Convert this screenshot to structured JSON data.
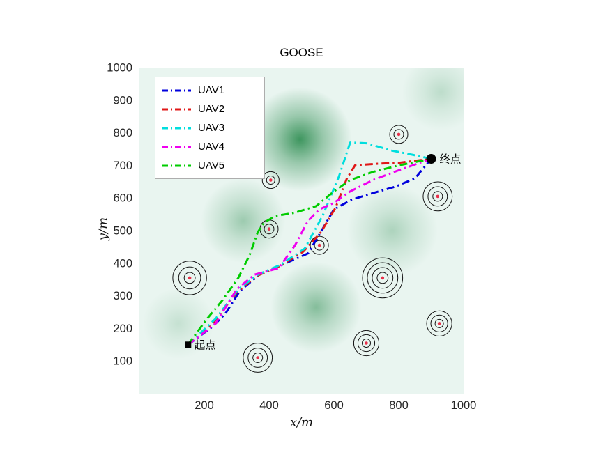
{
  "chart_data": {
    "type": "line",
    "title": "GOOSE",
    "xlabel": "x/m",
    "ylabel": "y/m",
    "xlim": [
      0,
      1000
    ],
    "ylim": [
      0,
      1000
    ],
    "xticks": [
      200,
      400,
      600,
      800,
      1000
    ],
    "yticks": [
      100,
      200,
      300,
      400,
      500,
      600,
      700,
      800,
      900,
      1000
    ],
    "grid": false,
    "legend_position": "top-left",
    "line_style": "dash-dot",
    "tick_color": "#262626",
    "obstacle_ring_color": "#141414",
    "obstacle_center_color": "#e8304a",
    "series": [
      {
        "name": "UAV1",
        "color": "#0000dd",
        "points": [
          [
            150,
            150
          ],
          [
            225,
            205
          ],
          [
            265,
            245
          ],
          [
            310,
            315
          ],
          [
            370,
            365
          ],
          [
            440,
            395
          ],
          [
            520,
            430
          ],
          [
            565,
            505
          ],
          [
            600,
            565
          ],
          [
            655,
            595
          ],
          [
            720,
            615
          ],
          [
            790,
            635
          ],
          [
            850,
            660
          ],
          [
            900,
            720
          ]
        ]
      },
      {
        "name": "UAV2",
        "color": "#e01717",
        "points": [
          [
            150,
            150
          ],
          [
            230,
            220
          ],
          [
            300,
            310
          ],
          [
            360,
            360
          ],
          [
            430,
            390
          ],
          [
            505,
            435
          ],
          [
            560,
            495
          ],
          [
            605,
            570
          ],
          [
            640,
            660
          ],
          [
            665,
            700
          ],
          [
            730,
            705
          ],
          [
            800,
            708
          ],
          [
            900,
            720
          ]
        ]
      },
      {
        "name": "UAV3",
        "color": "#00dede",
        "points": [
          [
            150,
            150
          ],
          [
            235,
            230
          ],
          [
            305,
            320
          ],
          [
            365,
            365
          ],
          [
            435,
            395
          ],
          [
            510,
            445
          ],
          [
            565,
            545
          ],
          [
            615,
            665
          ],
          [
            650,
            770
          ],
          [
            700,
            768
          ],
          [
            780,
            745
          ],
          [
            845,
            732
          ],
          [
            900,
            720
          ]
        ]
      },
      {
        "name": "UAV4",
        "color": "#f000f0",
        "points": [
          [
            150,
            150
          ],
          [
            235,
            215
          ],
          [
            300,
            320
          ],
          [
            355,
            365
          ],
          [
            430,
            385
          ],
          [
            480,
            455
          ],
          [
            520,
            530
          ],
          [
            555,
            565
          ],
          [
            600,
            585
          ],
          [
            650,
            620
          ],
          [
            720,
            655
          ],
          [
            800,
            685
          ],
          [
            900,
            720
          ]
        ]
      },
      {
        "name": "UAV5",
        "color": "#00cc00",
        "points": [
          [
            150,
            150
          ],
          [
            205,
            225
          ],
          [
            255,
            285
          ],
          [
            305,
            355
          ],
          [
            340,
            425
          ],
          [
            365,
            495
          ],
          [
            385,
            525
          ],
          [
            420,
            545
          ],
          [
            480,
            555
          ],
          [
            545,
            575
          ],
          [
            600,
            620
          ],
          [
            650,
            655
          ],
          [
            720,
            680
          ],
          [
            800,
            700
          ],
          [
            900,
            720
          ]
        ]
      }
    ],
    "start": {
      "x": 150,
      "y": 150,
      "label": "起点",
      "marker": "square",
      "color": "#000000"
    },
    "end": {
      "x": 900,
      "y": 720,
      "label": "终点",
      "marker": "circle",
      "color": "#000000"
    },
    "obstacles": [
      {
        "x": 800,
        "y": 795,
        "rings": [
          15,
          28
        ]
      },
      {
        "x": 920,
        "y": 605,
        "rings": [
          15,
          30,
          45
        ]
      },
      {
        "x": 405,
        "y": 655,
        "rings": [
          13,
          26
        ]
      },
      {
        "x": 400,
        "y": 505,
        "rings": [
          15,
          28
        ]
      },
      {
        "x": 555,
        "y": 455,
        "rings": [
          15,
          28
        ]
      },
      {
        "x": 155,
        "y": 355,
        "rings": [
          17,
          34,
          52
        ]
      },
      {
        "x": 750,
        "y": 355,
        "rings": [
          17,
          32,
          47,
          62
        ]
      },
      {
        "x": 365,
        "y": 110,
        "rings": [
          15,
          30,
          45
        ]
      },
      {
        "x": 700,
        "y": 155,
        "rings": [
          13,
          26,
          39
        ]
      },
      {
        "x": 925,
        "y": 215,
        "rings": [
          13,
          26,
          39
        ]
      }
    ],
    "background": {
      "base_color": "#e9f5f0",
      "blob_color": "#157f3c",
      "blobs": [
        {
          "x": 495,
          "y": 780,
          "r": 160,
          "opacity": 0.85
        },
        {
          "x": 320,
          "y": 530,
          "r": 130,
          "opacity": 0.38
        },
        {
          "x": 545,
          "y": 265,
          "r": 140,
          "opacity": 0.5
        },
        {
          "x": 780,
          "y": 500,
          "r": 140,
          "opacity": 0.3
        },
        {
          "x": 180,
          "y": 830,
          "r": 120,
          "opacity": 0.22
        },
        {
          "x": 930,
          "y": 925,
          "r": 120,
          "opacity": 0.22
        },
        {
          "x": 120,
          "y": 215,
          "r": 110,
          "opacity": 0.18
        }
      ]
    }
  }
}
